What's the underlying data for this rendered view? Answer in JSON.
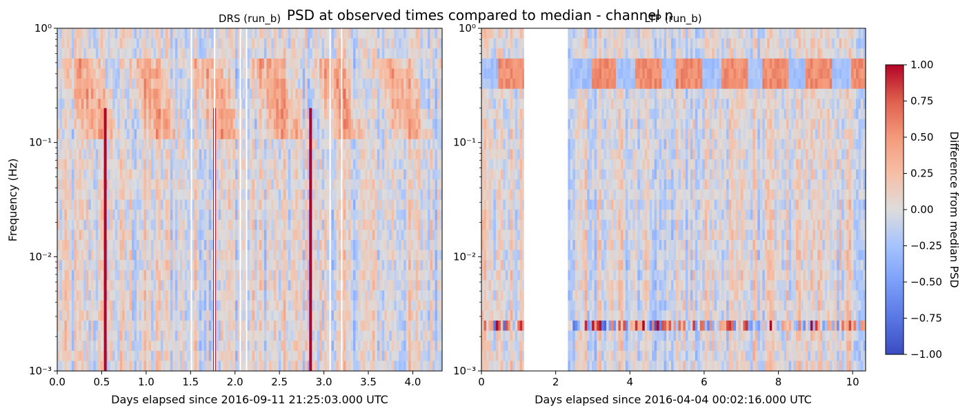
{
  "suptitle": "PSD at observed times compared to median - channel n",
  "colorbar": {
    "label": "Difference from median PSD",
    "ticks": [
      "1.00",
      "0.75",
      "0.50",
      "0.25",
      "0.00",
      "−0.25",
      "−0.50",
      "−0.75",
      "−1.00"
    ],
    "vmin": -1.0,
    "vmax": 1.0,
    "colormap": "coolwarm",
    "colors": {
      "low": "#3b4cc0",
      "mid": "#dddddd",
      "high": "#b40426"
    }
  },
  "chart_data": [
    {
      "type": "heatmap",
      "title": "DRS (run_b)",
      "xlabel": "Days elapsed since 2016-09-11 21:25:03.000 UTC",
      "ylabel": "Frequency (Hz)",
      "xlim": [
        0,
        4.33
      ],
      "ylim": [
        0.001,
        1
      ],
      "yscale": "log",
      "xticks": [
        0.0,
        0.5,
        1.0,
        1.5,
        2.0,
        2.5,
        3.0,
        3.5,
        4.0
      ],
      "xtick_labels": [
        "0.0",
        "0.5",
        "1.0",
        "1.5",
        "2.0",
        "2.5",
        "3.0",
        "3.5",
        "4.0"
      ],
      "ytick_labels": [
        "10⁻³",
        "10⁻²",
        "10⁻¹",
        "10⁰"
      ],
      "gaps_days": [
        1.51,
        1.77,
        2.06,
        2.13,
        3.07,
        3.2
      ],
      "strong_positive_days": [
        0.54,
        1.77,
        2.85
      ],
      "positive_band_hz": [
        0.1,
        0.5
      ]
    },
    {
      "type": "heatmap",
      "title": "LTP (run_b)",
      "xlabel": "Days elapsed since 2016-04-04 00:02:16.000 UTC",
      "ylabel": "",
      "xlim": [
        0,
        10.35
      ],
      "ylim": [
        0.001,
        1
      ],
      "yscale": "log",
      "xticks": [
        0,
        2,
        4,
        6,
        8,
        10
      ],
      "xtick_labels": [
        "0",
        "2",
        "4",
        "6",
        "8",
        "10"
      ],
      "ytick_labels": [
        "10⁻³",
        "10⁻²",
        "10⁻¹",
        "10⁰"
      ],
      "gaps_days": [
        [
          1.15,
          2.3
        ]
      ],
      "periodic_band_hz": [
        0.3,
        0.6
      ],
      "periodic_peaks_days": [
        0.8,
        3.3,
        4.5,
        5.6,
        6.8,
        7.9,
        9.1,
        10.3
      ],
      "noise_rows_hz": [
        0.0023,
        0.0028
      ]
    }
  ]
}
